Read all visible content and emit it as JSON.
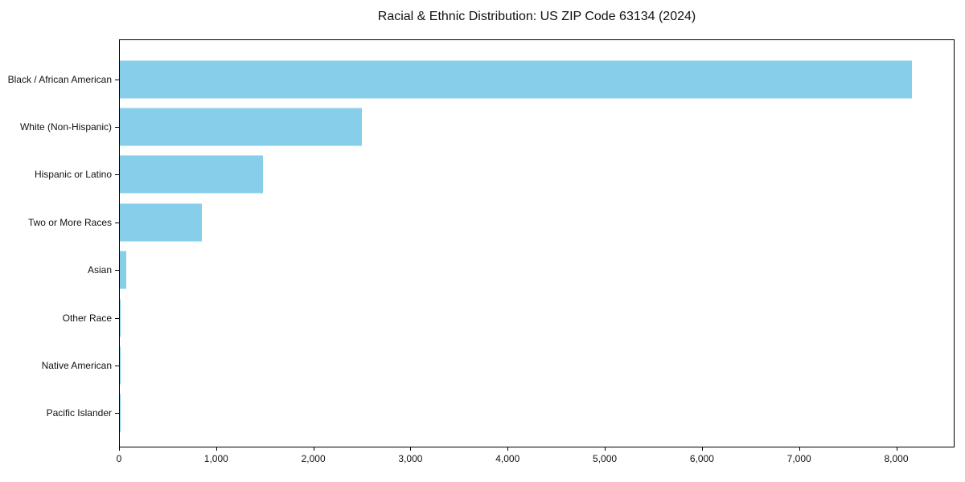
{
  "chart_data": {
    "type": "bar",
    "orientation": "horizontal",
    "title": "Racial & Ethnic Distribution: US ZIP Code 63134 (2024)",
    "categories": [
      "Black / African American",
      "White (Non-Hispanic)",
      "Hispanic or Latino",
      "Two or More Races",
      "Asian",
      "Other Race",
      "Native American",
      "Pacific Islander"
    ],
    "values": [
      8170,
      2495,
      1475,
      850,
      65,
      12,
      2,
      1
    ],
    "xlabel": "",
    "ylabel": "",
    "xlim": [
      0,
      8600
    ],
    "xticks": [
      0,
      1000,
      2000,
      3000,
      4000,
      5000,
      6000,
      7000,
      8000
    ],
    "xtick_labels": [
      "0",
      "1,000",
      "2,000",
      "3,000",
      "4,000",
      "5,000",
      "6,000",
      "7,000",
      "8,000"
    ],
    "grid": false,
    "legend": false,
    "colors": {
      "bar": "#87CEEB",
      "spine": "#000000",
      "text": "#111111",
      "background": "#ffffff"
    }
  }
}
